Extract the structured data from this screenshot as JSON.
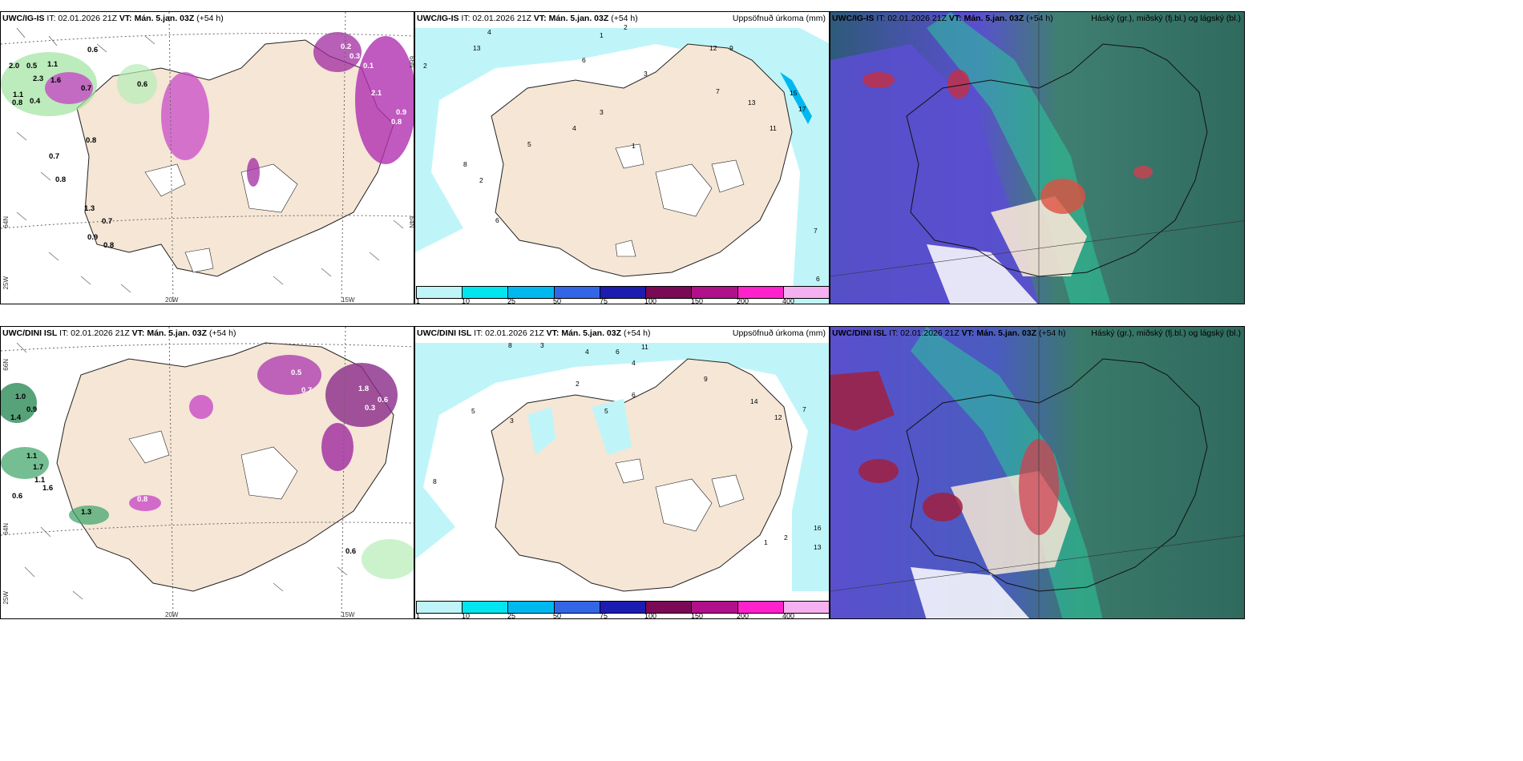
{
  "rows": [
    {
      "model": "UWC/IG-IS",
      "it_label": "IT: 02.01.2026 21Z",
      "vt_label": "VT: Mán. 5.jan. 03Z",
      "lead": "(+54 h)"
    },
    {
      "model": "UWC/DINI ISL",
      "it_label": "IT: 02.01.2026 21Z",
      "vt_label": "VT: Mán. 5.jan. 03Z",
      "lead": "(+54 h)"
    }
  ],
  "precip_title": "Uppsöfnuð úrkoma (mm)",
  "cloud_title": "Háský (gr.), miðský (fj.bl.) og lágský (bl.)",
  "colorbar": {
    "ticks": [
      "1",
      "10",
      "25",
      "50",
      "75",
      "100",
      "150",
      "200",
      "400"
    ],
    "colors": [
      "#bff5f8",
      "#00e5ee",
      "#00b8f0",
      "#3366e6",
      "#1c1cb0",
      "#7a0a55",
      "#b0108a",
      "#ff22cc",
      "#f5b0f0"
    ]
  },
  "map_labels": {
    "lon_20w": "20W",
    "lon_15w": "15W",
    "lon_25w": "25W",
    "lat_66n": "66N",
    "lat_64n": "64N"
  },
  "row1_left_values": [
    "0.6",
    "2.0",
    "0.5",
    "1.1",
    "2.3",
    "1.6",
    "0.7",
    "1.1",
    "0.8",
    "0.4",
    "0.6",
    "0.7",
    "0.8",
    "1.3",
    "0.7",
    "0.9",
    "0.8",
    "0.2",
    "0.3",
    "0.1",
    "2.1",
    "0.9",
    "0.8"
  ],
  "row1_mid_values": [
    "4",
    "2",
    "1",
    "13",
    "6",
    "3",
    "2",
    "7",
    "9",
    "12",
    "15",
    "17",
    "13",
    "11",
    "5",
    "6",
    "4",
    "3",
    "1",
    "8",
    "2",
    "7",
    "6"
  ],
  "row2_left_values": [
    "1.0",
    "0.9",
    "1.4",
    "1.1",
    "1.7",
    "1.1",
    "1.6",
    "0.6",
    "1.3",
    "0.8",
    "0.5",
    "0.7",
    "1.8",
    "0.6",
    "0.3",
    "0.6"
  ],
  "row2_mid_values": [
    "8",
    "3",
    "4",
    "6",
    "11",
    "4",
    "5",
    "2",
    "6",
    "3",
    "7",
    "12",
    "8",
    "14",
    "16",
    "13",
    "1",
    "2",
    "5",
    "9"
  ]
}
